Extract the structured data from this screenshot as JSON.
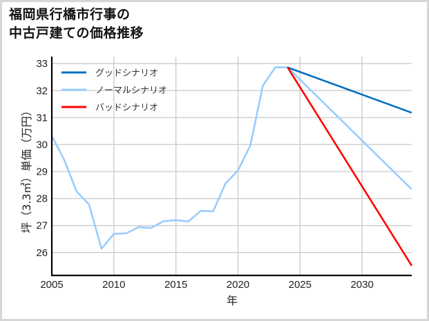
{
  "title": {
    "line1": "福岡県行橋市行事の",
    "line2": "中古戸建ての価格推移"
  },
  "chart_data": {
    "type": "line",
    "title": "福岡県行橋市行事の中古戸建ての価格推移",
    "xlabel": "年",
    "ylabel": "坪（3.3㎡）単価（万円）",
    "xlim": [
      2005,
      2034
    ],
    "ylim": [
      25.15,
      33.26
    ],
    "x_ticks": [
      2005,
      2010,
      2015,
      2020,
      2025,
      2030
    ],
    "y_ticks": [
      26,
      27,
      28,
      29,
      30,
      31,
      32,
      33
    ],
    "grid": true,
    "legend_position": "upper left",
    "series": [
      {
        "name": "グッドシナリオ",
        "color": "#0070c0",
        "x": [
          2024,
          2034
        ],
        "values": [
          32.86,
          31.18
        ]
      },
      {
        "name": "ノーマルシナリオ",
        "color": "#99ccff",
        "x": [
          2005,
          2006,
          2007,
          2008,
          2009,
          2010,
          2011,
          2012,
          2013,
          2014,
          2015,
          2016,
          2017,
          2018,
          2019,
          2020,
          2021,
          2022,
          2023,
          2024,
          2034
        ],
        "values": [
          30.32,
          29.43,
          28.26,
          27.78,
          26.14,
          26.69,
          26.71,
          26.94,
          26.91,
          27.16,
          27.2,
          27.15,
          27.54,
          27.53,
          28.56,
          29.04,
          29.97,
          32.18,
          32.86,
          32.86,
          28.34
        ]
      },
      {
        "name": "バッドシナリオ",
        "color": "#ff0000",
        "x": [
          2024,
          2034
        ],
        "values": [
          32.86,
          25.51
        ]
      }
    ]
  },
  "colors": {
    "grid": "#d0d0d0",
    "axis": "#000000",
    "frame": "#d6d6d6"
  }
}
